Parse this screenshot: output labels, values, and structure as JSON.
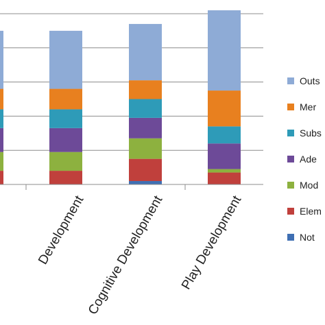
{
  "chart_data": {
    "type": "bar",
    "stacked": true,
    "title": "",
    "xlabel": "",
    "ylabel": "",
    "ylim": [
      0,
      100
    ],
    "grid": true,
    "legend_position": "right",
    "categories": [
      " Development",
      "Cognitive Development",
      "Play Development"
    ],
    "series": [
      {
        "name": "Not",
        "color": "#3f6fb3",
        "values": [
          0,
          2,
          0
        ]
      },
      {
        "name": "Elem",
        "color": "#c0403c",
        "values": [
          8,
          13,
          7
        ]
      },
      {
        "name": "Mod",
        "color": "#8db13f",
        "values": [
          11,
          12,
          2
        ]
      },
      {
        "name": "Ade",
        "color": "#6d4a98",
        "values": [
          14,
          12,
          15
        ]
      },
      {
        "name": "Subs",
        "color": "#2e9bb8",
        "values": [
          11,
          11,
          10
        ]
      },
      {
        "name": "Mer",
        "color": "#e8801f",
        "values": [
          12,
          11,
          21
        ]
      },
      {
        "name": "Outs",
        "color": "#8eabd6",
        "values": [
          34,
          33,
          47
        ]
      }
    ],
    "partial_bar_left": {
      "values": [
        8,
        11,
        14,
        11,
        12,
        34
      ]
    }
  }
}
